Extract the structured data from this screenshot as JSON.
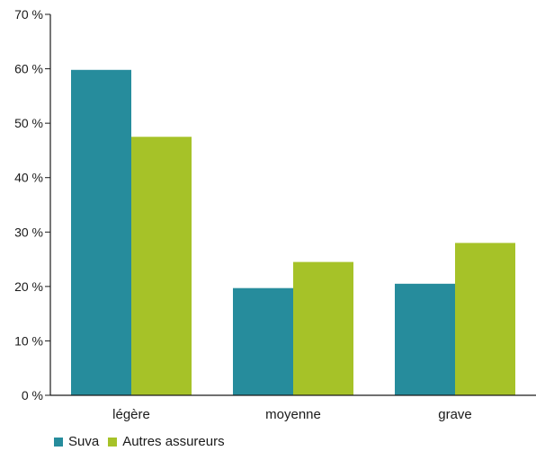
{
  "chart_data": {
    "type": "bar",
    "categories": [
      "légère",
      "moyenne",
      "grave"
    ],
    "series": [
      {
        "name": "Suva",
        "values": [
          59.8,
          19.7,
          20.5
        ],
        "color": "#268c9c"
      },
      {
        "name": "Autres assureurs",
        "values": [
          47.5,
          24.5,
          28.0
        ],
        "color": "#a6c228"
      }
    ],
    "yticks": [
      {
        "value": 0,
        "label": "0 %"
      },
      {
        "value": 10,
        "label": "10 %"
      },
      {
        "value": 20,
        "label": "20 %"
      },
      {
        "value": 30,
        "label": "30 %"
      },
      {
        "value": 40,
        "label": "40 %"
      },
      {
        "value": 50,
        "label": "50 %"
      },
      {
        "value": 60,
        "label": "60 %"
      },
      {
        "value": 70,
        "label": "70 %"
      }
    ],
    "ylim": [
      0,
      70
    ],
    "grid": false,
    "legend_position": "bottom-left",
    "title": "",
    "xlabel": "",
    "ylabel": ""
  }
}
